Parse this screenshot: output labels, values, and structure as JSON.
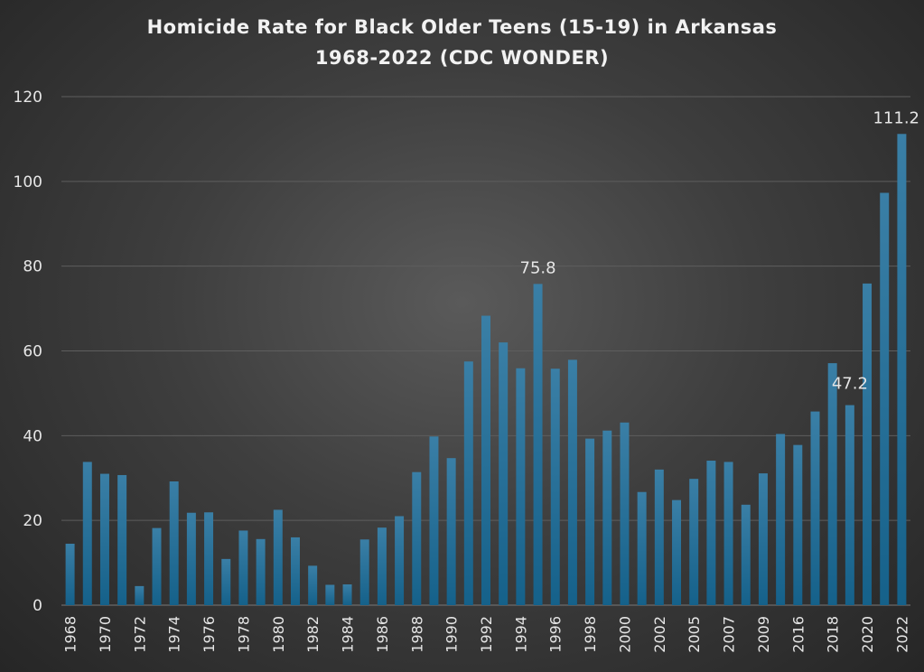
{
  "chart_data": {
    "type": "bar",
    "title_line1": "Homicide Rate for Black Older Teens (15-19) in Arkansas",
    "title_line2": "1968-2022 (CDC WONDER)",
    "xlabel": "",
    "ylabel": "",
    "ylim": [
      0,
      120
    ],
    "yticks": [
      0,
      20,
      40,
      60,
      80,
      100,
      120
    ],
    "grid": true,
    "legend": "none",
    "bar_color": "#1f6f99",
    "label_color": "#e6e6e6",
    "categories": [
      "1968",
      "1969",
      "1970",
      "1971",
      "1972",
      "1973",
      "1974",
      "1975",
      "1976",
      "1977",
      "1978",
      "1979",
      "1980",
      "1981",
      "1982",
      "1983",
      "1984",
      "1985",
      "1986",
      "1987",
      "1988",
      "1989",
      "1990",
      "1991",
      "1992",
      "1993",
      "1994",
      "1995",
      "1996",
      "1997",
      "1998",
      "1999",
      "2000",
      "2001",
      "2002",
      "2003",
      "2005",
      "2006",
      "2007",
      "2008",
      "2009",
      "2010",
      "2016",
      "2017",
      "2018",
      "2019",
      "2020",
      "2021",
      "2022"
    ],
    "tick_labels": [
      "1968",
      "",
      "1970",
      "",
      "1972",
      "",
      "1974",
      "",
      "1976",
      "",
      "1978",
      "",
      "1980",
      "",
      "1982",
      "",
      "1984",
      "",
      "1986",
      "",
      "1988",
      "",
      "1990",
      "",
      "1992",
      "",
      "1994",
      "",
      "1996",
      "",
      "1998",
      "",
      "2000",
      "",
      "2002",
      "",
      "2005",
      "",
      "2007",
      "",
      "2009",
      "",
      "2016",
      "",
      "2018",
      "",
      "2020",
      "",
      "2022"
    ],
    "values": [
      14.5,
      33.8,
      31,
      30.7,
      4.5,
      18.2,
      29.2,
      21.8,
      21.9,
      10.9,
      17.6,
      15.6,
      22.5,
      16,
      9.3,
      4.8,
      4.9,
      15.5,
      18.3,
      21,
      31.4,
      39.8,
      34.7,
      57.5,
      68.3,
      62,
      55.9,
      75.8,
      55.8,
      57.9,
      39.3,
      41.2,
      43.1,
      26.7,
      32,
      24.8,
      29.8,
      34.1,
      33.8,
      23.7,
      31.1,
      40.4,
      37.8,
      45.7,
      57.1,
      47.2,
      75.9,
      97.3,
      111.2
    ],
    "data_labels": [
      {
        "category": "1995",
        "text": "75.8"
      },
      {
        "category": "2019",
        "text": "47.2"
      },
      {
        "category": "2022",
        "text": "111.2"
      }
    ]
  }
}
